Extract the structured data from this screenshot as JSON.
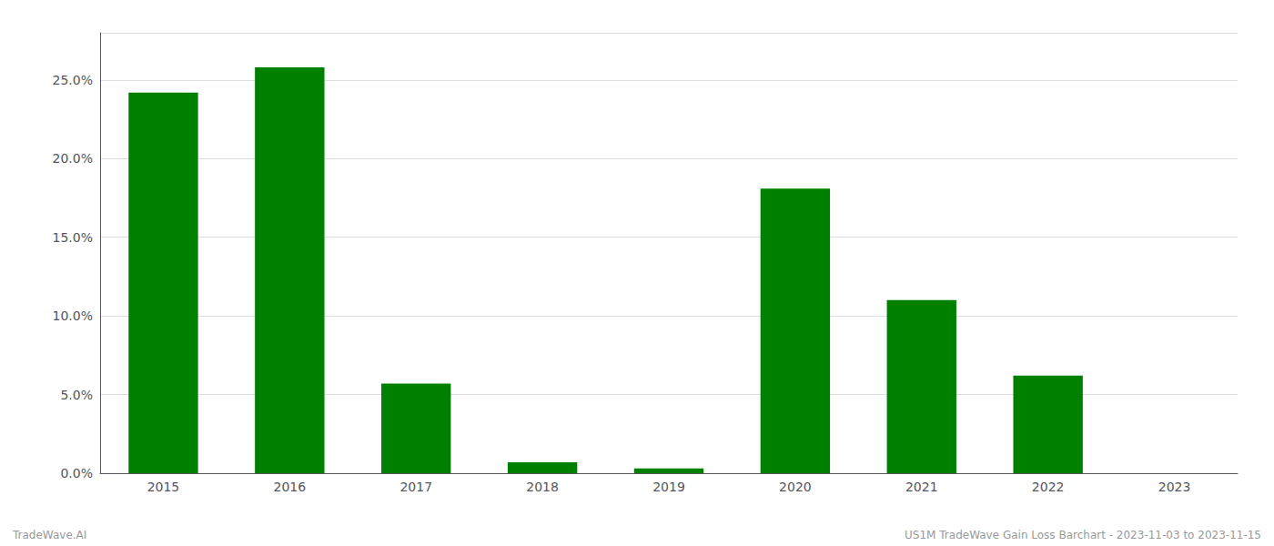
{
  "chart_data": {
    "type": "bar",
    "categories": [
      "2015",
      "2016",
      "2017",
      "2018",
      "2019",
      "2020",
      "2021",
      "2022",
      "2023"
    ],
    "values": [
      0.242,
      0.258,
      0.057,
      0.007,
      0.003,
      0.181,
      0.11,
      0.062,
      0.0
    ],
    "color": "#008000",
    "ylim": [
      0,
      0.28
    ],
    "yticks": [
      {
        "value": 0.0,
        "label": "0.0%"
      },
      {
        "value": 0.05,
        "label": "5.0%"
      },
      {
        "value": 0.1,
        "label": "10.0%"
      },
      {
        "value": 0.15,
        "label": "15.0%"
      },
      {
        "value": 0.2,
        "label": "20.0%"
      },
      {
        "value": 0.25,
        "label": "25.0%"
      }
    ],
    "grid": true,
    "annotations": [
      "TradeWave.AI",
      "US1M TradeWave Gain Loss Barchart - 2023-11-03 to 2023-11-15"
    ]
  }
}
